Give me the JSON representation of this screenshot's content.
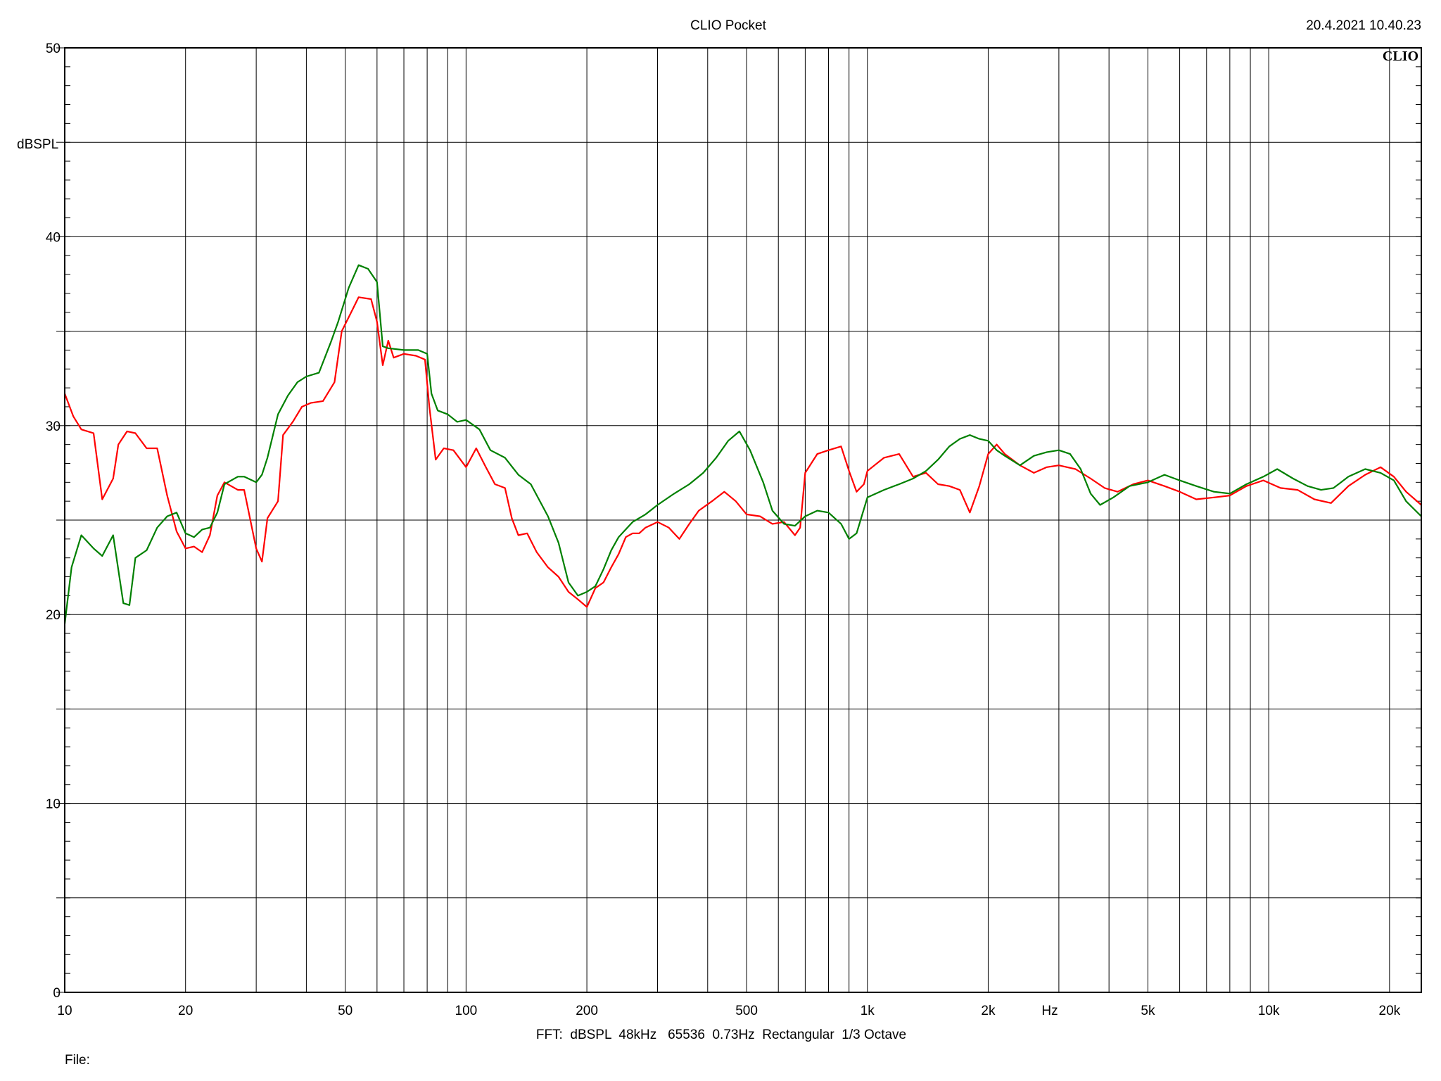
{
  "header": {
    "title": "CLIO Pocket",
    "timestamp": "20.4.2021 10.40.23",
    "brand": "CLIO"
  },
  "footer": {
    "settings": "FFT:  dBSPL  48kHz   65536  0.73Hz  Rectangular  1/3 Octave",
    "file_label": "File:"
  },
  "chart_data": {
    "type": "line",
    "xscale": "log",
    "xlim": [
      10,
      24000
    ],
    "ylim": [
      0,
      50
    ],
    "xlabel": "Hz",
    "ylabel": "dBSPL",
    "grid": true,
    "x_tick_labels": [
      {
        "value": 10,
        "label": "10"
      },
      {
        "value": 20,
        "label": "20"
      },
      {
        "value": 50,
        "label": "50"
      },
      {
        "value": 100,
        "label": "100"
      },
      {
        "value": 200,
        "label": "200"
      },
      {
        "value": 500,
        "label": "500"
      },
      {
        "value": 1000,
        "label": "1k"
      },
      {
        "value": 2000,
        "label": "2k"
      },
      {
        "value": 5000,
        "label": "5k"
      },
      {
        "value": 10000,
        "label": "10k"
      },
      {
        "value": 20000,
        "label": "20k"
      }
    ],
    "y_tick_labels": [
      0,
      10,
      20,
      30,
      40,
      50
    ],
    "series": [
      {
        "color": "#ff0000",
        "points": [
          [
            10,
            31.7
          ],
          [
            10.5,
            30.5
          ],
          [
            11,
            29.8
          ],
          [
            11.8,
            29.6
          ],
          [
            12.4,
            26.1
          ],
          [
            13.2,
            27.2
          ],
          [
            13.6,
            29
          ],
          [
            14.3,
            29.7
          ],
          [
            15,
            29.6
          ],
          [
            16,
            28.8
          ],
          [
            17,
            28.8
          ],
          [
            18,
            26.3
          ],
          [
            19,
            24.4
          ],
          [
            20,
            23.5
          ],
          [
            21,
            23.6
          ],
          [
            22,
            23.3
          ],
          [
            23,
            24.2
          ],
          [
            24,
            26.3
          ],
          [
            25,
            27
          ],
          [
            27,
            26.6
          ],
          [
            28,
            26.6
          ],
          [
            30,
            23.5
          ],
          [
            31,
            22.8
          ],
          [
            32,
            25.1
          ],
          [
            34,
            26
          ],
          [
            35,
            29.5
          ],
          [
            37,
            30.2
          ],
          [
            39,
            31
          ],
          [
            41,
            31.2
          ],
          [
            44,
            31.3
          ],
          [
            47,
            32.3
          ],
          [
            49,
            35
          ],
          [
            52,
            36.1
          ],
          [
            54,
            36.8
          ],
          [
            58,
            36.7
          ],
          [
            60,
            35.5
          ],
          [
            62,
            33.2
          ],
          [
            64,
            34.5
          ],
          [
            66,
            33.6
          ],
          [
            70,
            33.8
          ],
          [
            75,
            33.7
          ],
          [
            79,
            33.5
          ],
          [
            81,
            31
          ],
          [
            84,
            28.2
          ],
          [
            88,
            28.8
          ],
          [
            93,
            28.7
          ],
          [
            100,
            27.8
          ],
          [
            106,
            28.8
          ],
          [
            112,
            27.8
          ],
          [
            118,
            26.9
          ],
          [
            125,
            26.7
          ],
          [
            130,
            25.1
          ],
          [
            135,
            24.2
          ],
          [
            142,
            24.3
          ],
          [
            150,
            23.3
          ],
          [
            160,
            22.5
          ],
          [
            170,
            22
          ],
          [
            180,
            21.2
          ],
          [
            190,
            20.8
          ],
          [
            200,
            20.4
          ],
          [
            210,
            21.4
          ],
          [
            220,
            21.7
          ],
          [
            230,
            22.5
          ],
          [
            240,
            23.2
          ],
          [
            250,
            24.1
          ],
          [
            260,
            24.3
          ],
          [
            270,
            24.3
          ],
          [
            280,
            24.6
          ],
          [
            300,
            24.9
          ],
          [
            320,
            24.6
          ],
          [
            340,
            24
          ],
          [
            360,
            24.8
          ],
          [
            380,
            25.5
          ],
          [
            410,
            26
          ],
          [
            440,
            26.5
          ],
          [
            470,
            26
          ],
          [
            500,
            25.3
          ],
          [
            540,
            25.2
          ],
          [
            580,
            24.8
          ],
          [
            620,
            24.9
          ],
          [
            660,
            24.2
          ],
          [
            680,
            24.6
          ],
          [
            700,
            27.5
          ],
          [
            750,
            28.5
          ],
          [
            800,
            28.7
          ],
          [
            860,
            28.9
          ],
          [
            900,
            27.6
          ],
          [
            940,
            26.5
          ],
          [
            980,
            26.9
          ],
          [
            1000,
            27.6
          ],
          [
            1100,
            28.3
          ],
          [
            1200,
            28.5
          ],
          [
            1300,
            27.3
          ],
          [
            1400,
            27.5
          ],
          [
            1500,
            26.9
          ],
          [
            1600,
            26.8
          ],
          [
            1700,
            26.6
          ],
          [
            1800,
            25.4
          ],
          [
            1900,
            26.8
          ],
          [
            2000,
            28.5
          ],
          [
            2100,
            29
          ],
          [
            2200,
            28.5
          ],
          [
            2400,
            27.9
          ],
          [
            2600,
            27.5
          ],
          [
            2800,
            27.8
          ],
          [
            3000,
            27.9
          ],
          [
            3300,
            27.7
          ],
          [
            3600,
            27.2
          ],
          [
            3900,
            26.7
          ],
          [
            4200,
            26.5
          ],
          [
            4600,
            26.9
          ],
          [
            5000,
            27.1
          ],
          [
            5500,
            26.8
          ],
          [
            6000,
            26.5
          ],
          [
            6600,
            26.1
          ],
          [
            7300,
            26.2
          ],
          [
            8000,
            26.3
          ],
          [
            8800,
            26.8
          ],
          [
            9700,
            27.1
          ],
          [
            10700,
            26.7
          ],
          [
            11800,
            26.6
          ],
          [
            13000,
            26.1
          ],
          [
            14300,
            25.9
          ],
          [
            15800,
            26.8
          ],
          [
            17400,
            27.4
          ],
          [
            19000,
            27.8
          ],
          [
            20500,
            27.3
          ],
          [
            22000,
            26.5
          ],
          [
            24000,
            25.8
          ]
        ]
      },
      {
        "color": "#008000",
        "points": [
          [
            10,
            19.5
          ],
          [
            10.4,
            22.5
          ],
          [
            11,
            24.2
          ],
          [
            11.8,
            23.5
          ],
          [
            12.4,
            23.1
          ],
          [
            13.2,
            24.2
          ],
          [
            14,
            20.6
          ],
          [
            14.5,
            20.5
          ],
          [
            15,
            23
          ],
          [
            16,
            23.4
          ],
          [
            17,
            24.6
          ],
          [
            18,
            25.2
          ],
          [
            19,
            25.4
          ],
          [
            20,
            24.3
          ],
          [
            21,
            24.1
          ],
          [
            22,
            24.5
          ],
          [
            23,
            24.6
          ],
          [
            24,
            25.4
          ],
          [
            25,
            26.9
          ],
          [
            27,
            27.3
          ],
          [
            28,
            27.3
          ],
          [
            30,
            27
          ],
          [
            31,
            27.4
          ],
          [
            32,
            28.3
          ],
          [
            34,
            30.6
          ],
          [
            36,
            31.6
          ],
          [
            38,
            32.3
          ],
          [
            40,
            32.6
          ],
          [
            43,
            32.8
          ],
          [
            46,
            34.4
          ],
          [
            48,
            35.5
          ],
          [
            51,
            37.3
          ],
          [
            54,
            38.5
          ],
          [
            57,
            38.3
          ],
          [
            60,
            37.6
          ],
          [
            62,
            34.2
          ],
          [
            64,
            34.1
          ],
          [
            70,
            34
          ],
          [
            76,
            34
          ],
          [
            80,
            33.8
          ],
          [
            82,
            31.7
          ],
          [
            85,
            30.8
          ],
          [
            90,
            30.6
          ],
          [
            95,
            30.2
          ],
          [
            100,
            30.3
          ],
          [
            108,
            29.8
          ],
          [
            115,
            28.7
          ],
          [
            125,
            28.3
          ],
          [
            135,
            27.4
          ],
          [
            145,
            26.9
          ],
          [
            160,
            25.2
          ],
          [
            170,
            23.8
          ],
          [
            180,
            21.7
          ],
          [
            190,
            21
          ],
          [
            200,
            21.2
          ],
          [
            210,
            21.5
          ],
          [
            220,
            22.4
          ],
          [
            230,
            23.4
          ],
          [
            240,
            24.1
          ],
          [
            260,
            24.9
          ],
          [
            280,
            25.3
          ],
          [
            300,
            25.8
          ],
          [
            330,
            26.4
          ],
          [
            360,
            26.9
          ],
          [
            390,
            27.5
          ],
          [
            420,
            28.3
          ],
          [
            450,
            29.2
          ],
          [
            480,
            29.7
          ],
          [
            510,
            28.7
          ],
          [
            550,
            27
          ],
          [
            580,
            25.5
          ],
          [
            620,
            24.8
          ],
          [
            660,
            24.7
          ],
          [
            700,
            25.2
          ],
          [
            750,
            25.5
          ],
          [
            800,
            25.4
          ],
          [
            860,
            24.8
          ],
          [
            900,
            24
          ],
          [
            940,
            24.3
          ],
          [
            1000,
            26.2
          ],
          [
            1100,
            26.6
          ],
          [
            1200,
            26.9
          ],
          [
            1300,
            27.2
          ],
          [
            1400,
            27.6
          ],
          [
            1500,
            28.2
          ],
          [
            1600,
            28.9
          ],
          [
            1700,
            29.3
          ],
          [
            1800,
            29.5
          ],
          [
            1900,
            29.3
          ],
          [
            2000,
            29.2
          ],
          [
            2100,
            28.7
          ],
          [
            2200,
            28.4
          ],
          [
            2400,
            27.9
          ],
          [
            2600,
            28.4
          ],
          [
            2800,
            28.6
          ],
          [
            3000,
            28.7
          ],
          [
            3200,
            28.5
          ],
          [
            3400,
            27.7
          ],
          [
            3600,
            26.4
          ],
          [
            3800,
            25.8
          ],
          [
            4100,
            26.2
          ],
          [
            4500,
            26.8
          ],
          [
            5000,
            27
          ],
          [
            5500,
            27.4
          ],
          [
            6000,
            27.1
          ],
          [
            6600,
            26.8
          ],
          [
            7300,
            26.5
          ],
          [
            8000,
            26.4
          ],
          [
            8800,
            26.9
          ],
          [
            9700,
            27.3
          ],
          [
            10500,
            27.7
          ],
          [
            11500,
            27.2
          ],
          [
            12500,
            26.8
          ],
          [
            13500,
            26.6
          ],
          [
            14500,
            26.7
          ],
          [
            15800,
            27.3
          ],
          [
            17400,
            27.7
          ],
          [
            19000,
            27.5
          ],
          [
            20500,
            27.1
          ],
          [
            22000,
            26
          ],
          [
            24000,
            25.2
          ]
        ]
      }
    ]
  }
}
